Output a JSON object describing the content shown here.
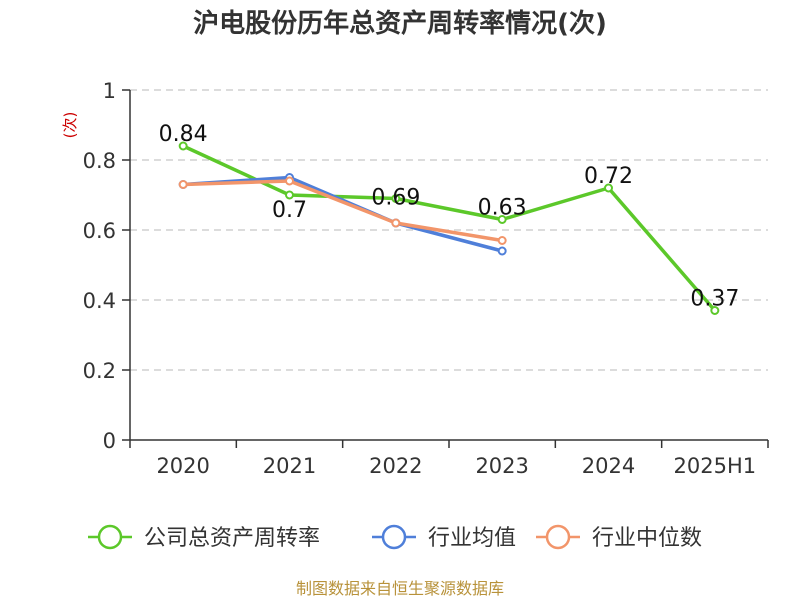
{
  "chart_data": {
    "type": "line",
    "title": "沪电股份历年总资产周转率情况(次)",
    "ylabel": "(次)",
    "xlabel": "",
    "categories": [
      "2020",
      "2021",
      "2022",
      "2023",
      "2024",
      "2025H1"
    ],
    "ylim": [
      0,
      1
    ],
    "yticks": [
      "0",
      "0.2",
      "0.4",
      "0.6",
      "0.8",
      "1"
    ],
    "grid": true,
    "legend_position": "bottom",
    "series": [
      {
        "name": "公司总资产周转率",
        "color": "#5cc82a",
        "values": [
          0.84,
          0.7,
          0.69,
          0.63,
          0.72,
          0.37
        ],
        "labels": [
          "0.84",
          "0.7",
          "0.69",
          "0.63",
          "0.72",
          "0.37"
        ]
      },
      {
        "name": "行业均值",
        "color": "#4f7fd9",
        "values": [
          0.73,
          0.75,
          0.62,
          0.54,
          null,
          null
        ]
      },
      {
        "name": "行业中位数",
        "color": "#f2956a",
        "values": [
          0.73,
          0.74,
          0.62,
          0.57,
          null,
          null
        ]
      }
    ]
  },
  "source": "制图数据来自恒生聚源数据库"
}
